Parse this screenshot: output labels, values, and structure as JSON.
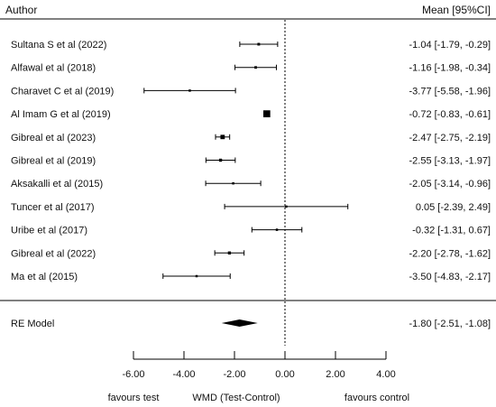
{
  "chart_data": {
    "type": "forest",
    "header": {
      "left": "Author",
      "right": "Mean [95%CI]"
    },
    "studies": [
      {
        "label": "Sultana S et al (2022)",
        "mean": -1.04,
        "lo": -1.79,
        "hi": -0.29,
        "text": "-1.04 [-1.79, -0.29]"
      },
      {
        "label": "Alfawal et al (2018)",
        "mean": -1.16,
        "lo": -1.98,
        "hi": -0.34,
        "text": "-1.16 [-1.98, -0.34]"
      },
      {
        "label": "Charavet C et al (2019)",
        "mean": -3.77,
        "lo": -5.58,
        "hi": -1.96,
        "text": "-3.77 [-5.58, -1.96]"
      },
      {
        "label": "Al Imam G et al (2019)",
        "mean": -0.72,
        "lo": -0.83,
        "hi": -0.61,
        "text": "-0.72 [-0.83, -0.61]"
      },
      {
        "label": "Gibreal et al (2023)",
        "mean": -2.47,
        "lo": -2.75,
        "hi": -2.19,
        "text": "-2.47 [-2.75, -2.19]"
      },
      {
        "label": "Gibreal et al (2019)",
        "mean": -2.55,
        "lo": -3.13,
        "hi": -1.97,
        "text": "-2.55 [-3.13, -1.97]"
      },
      {
        "label": "Aksakalli et al (2015)",
        "mean": -2.05,
        "lo": -3.14,
        "hi": -0.96,
        "text": "-2.05 [-3.14, -0.96]"
      },
      {
        "label": "Tuncer et al (2017)",
        "mean": 0.05,
        "lo": -2.39,
        "hi": 2.49,
        "text": "0.05 [-2.39, 2.49]"
      },
      {
        "label": "Uribe et al (2017)",
        "mean": -0.32,
        "lo": -1.31,
        "hi": 0.67,
        "text": "-0.32 [-1.31, 0.67]"
      },
      {
        "label": "Gibreal et al (2022)",
        "mean": -2.2,
        "lo": -2.78,
        "hi": -1.62,
        "text": "-2.20 [-2.78, -1.62]"
      },
      {
        "label": "Ma et al (2015)",
        "mean": -3.5,
        "lo": -4.83,
        "hi": -2.17,
        "text": "-3.50 [-4.83, -2.17]"
      }
    ],
    "pooled": {
      "label": "RE Model",
      "mean": -1.8,
      "lo": -2.51,
      "hi": -1.08,
      "text": "-1.80 [-2.51, -1.08]"
    },
    "x_axis": {
      "range": [
        -6,
        4
      ],
      "ticks": [
        -6,
        -4,
        -2,
        0,
        2,
        4
      ],
      "tick_labels": [
        "-6.00",
        "-4.00",
        "-2.00",
        "0.00",
        "2.00",
        "4.00"
      ],
      "label": "WMD (Test-Control)",
      "left_note": "favours test",
      "right_note": "favours control"
    },
    "reference_line": 0,
    "grid": false,
    "legend": "none"
  }
}
